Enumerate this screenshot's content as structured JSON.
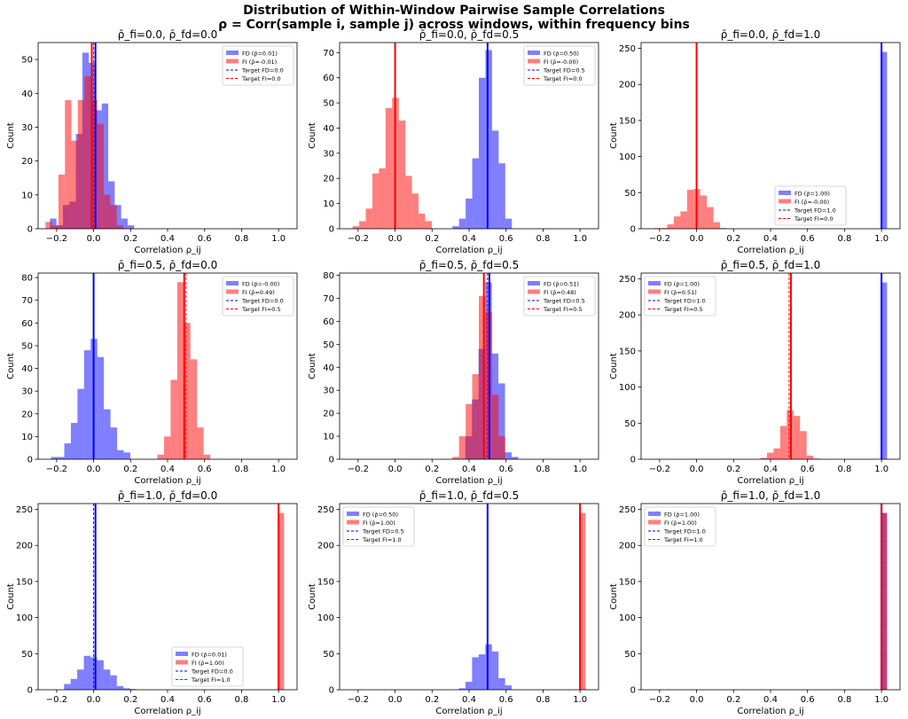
{
  "figure": {
    "title_line1": "Distribution of Within-Window Pairwise Sample Correlations",
    "title_line2": "ρ = Corr(sample i, sample j) across windows, within frequency bins"
  },
  "colors": {
    "fd": "#0000ff",
    "fi": "#ff0000",
    "fd_fill": "#8080ff",
    "fi_fill": "#ff8080",
    "overlap": "#c0407a"
  },
  "chart_data": [
    {
      "type": "bar",
      "title": "ρ̄_fi=0.0, ρ̄_fd=0.0",
      "xlabel": "Correlation ρ_ij",
      "ylabel": "Count",
      "xlim": [
        -0.3,
        1.1
      ],
      "ylim": [
        0,
        55
      ],
      "xticks": [
        "−0.2",
        "0.0",
        "0.2",
        "0.4",
        "0.6",
        "0.8",
        "1.0"
      ],
      "xtick_values": [
        -0.2,
        0,
        0.2,
        0.4,
        0.6,
        0.8,
        1.0
      ],
      "yticks": [
        0,
        10,
        20,
        30,
        40,
        50
      ],
      "legend_position": "upper-right",
      "series": [
        {
          "name": "FD",
          "legend": "FD (ρ̄=0.01)",
          "mean": 0.01,
          "target": 0.0,
          "target_legend": "Target FD=0.0",
          "bin_start": -0.236,
          "bin_width": 0.035,
          "counts": [
            3,
            1,
            7,
            8,
            28,
            52,
            49,
            35,
            37,
            14,
            7,
            3,
            1
          ]
        },
        {
          "name": "FI",
          "legend": "FI (ρ̄=-0.01)",
          "mean": -0.01,
          "target": 0.0,
          "target_legend": "Target FI=0.0",
          "bin_start": -0.26,
          "bin_width": 0.035,
          "counts": [
            2,
            1,
            16,
            38,
            26,
            38,
            45,
            38,
            31,
            10,
            7,
            1
          ]
        }
      ]
    },
    {
      "type": "bar",
      "title": "ρ̄_fi=0.0, ρ̄_fd=0.5",
      "xlabel": "Correlation ρ_ij",
      "ylabel": "Count",
      "xlim": [
        -0.3,
        1.1
      ],
      "ylim": [
        0,
        74
      ],
      "xticks": [
        "−0.2",
        "0.0",
        "0.2",
        "0.4",
        "0.6",
        "0.8",
        "1.0"
      ],
      "xtick_values": [
        -0.2,
        0,
        0.2,
        0.4,
        0.6,
        0.8,
        1.0
      ],
      "yticks": [
        0,
        10,
        20,
        30,
        40,
        50,
        60,
        70
      ],
      "legend_position": "upper-right",
      "series": [
        {
          "name": "FD",
          "legend": "FD (ρ̄=0.50)",
          "mean": 0.5,
          "target": 0.5,
          "target_legend": "Target FD=0.5",
          "bin_start": 0.31,
          "bin_width": 0.0357,
          "counts": [
            1,
            4,
            12,
            28,
            60,
            71,
            39,
            26,
            4
          ]
        },
        {
          "name": "FI",
          "legend": "FI (ρ̄=-0.00)",
          "mean": 0.0,
          "target": 0.0,
          "target_legend": "Target FI=0.0",
          "bin_start": -0.23,
          "bin_width": 0.0357,
          "counts": [
            1,
            3,
            8,
            22,
            24,
            48,
            52,
            43,
            21,
            14,
            6,
            3
          ]
        }
      ]
    },
    {
      "type": "bar",
      "title": "ρ̄_fi=0.0, ρ̄_fd=1.0",
      "xlabel": "Correlation ρ_ij",
      "ylabel": "Count",
      "xlim": [
        -0.3,
        1.1
      ],
      "ylim": [
        0,
        258
      ],
      "xticks": [
        "−0.2",
        "0.0",
        "0.2",
        "0.4",
        "0.6",
        "0.8",
        "1.0"
      ],
      "xtick_values": [
        -0.2,
        0,
        0.2,
        0.4,
        0.6,
        0.8,
        1.0
      ],
      "yticks": [
        0,
        50,
        100,
        150,
        200,
        250
      ],
      "legend_position": "lower-center",
      "series": [
        {
          "name": "FD",
          "legend": "FD (ρ̄=1.00)",
          "mean": 1.0,
          "target": 1.0,
          "target_legend": "Target FD=1.0",
          "bin_start": 0.995,
          "bin_width": 0.035,
          "counts": [
            245
          ]
        },
        {
          "name": "FI",
          "legend": "FI (ρ̄=-0.00)",
          "mean": 0.0,
          "target": 0.0,
          "target_legend": "Target FI=0.0",
          "bin_start": -0.23,
          "bin_width": 0.0357,
          "counts": [
            1,
            1,
            6,
            17,
            24,
            54,
            55,
            46,
            30,
            9,
            1
          ]
        }
      ]
    },
    {
      "type": "bar",
      "title": "ρ̄_fi=0.5, ρ̄_fd=0.0",
      "xlabel": "Correlation ρ_ij",
      "ylabel": "Count",
      "xlim": [
        -0.3,
        1.1
      ],
      "ylim": [
        0,
        82
      ],
      "xticks": [
        "−0.2",
        "0.0",
        "0.2",
        "0.4",
        "0.6",
        "0.8",
        "1.0"
      ],
      "xtick_values": [
        -0.2,
        0,
        0.2,
        0.4,
        0.6,
        0.8,
        1.0
      ],
      "yticks": [
        0,
        10,
        20,
        30,
        40,
        50,
        60,
        70,
        80
      ],
      "legend_position": "upper-right",
      "series": [
        {
          "name": "FD",
          "legend": "FD (ρ̄=-0.00)",
          "mean": 0.0,
          "target": 0.0,
          "target_legend": "Target FD=0.0",
          "bin_start": -0.23,
          "bin_width": 0.0357,
          "counts": [
            1,
            1,
            7,
            16,
            31,
            48,
            53,
            45,
            22,
            14,
            4,
            3
          ]
        },
        {
          "name": "FI",
          "legend": "FI (ρ̄=0.49)",
          "mean": 0.49,
          "target": 0.5,
          "target_legend": "Target FI=0.5",
          "bin_start": 0.345,
          "bin_width": 0.0357,
          "counts": [
            2,
            10,
            35,
            78,
            60,
            44,
            14,
            2
          ]
        }
      ]
    },
    {
      "type": "bar",
      "title": "ρ̄_fi=0.5, ρ̄_fd=0.5",
      "xlabel": "Correlation ρ_ij",
      "ylabel": "Count",
      "xlim": [
        -0.3,
        1.1
      ],
      "ylim": [
        0,
        81
      ],
      "xticks": [
        "−0.2",
        "0.0",
        "0.2",
        "0.4",
        "0.6",
        "0.8",
        "1.0"
      ],
      "xtick_values": [
        -0.2,
        0,
        0.2,
        0.4,
        0.6,
        0.8,
        1.0
      ],
      "yticks": [
        0,
        10,
        20,
        30,
        40,
        50,
        60,
        70,
        80
      ],
      "legend_position": "upper-right",
      "series": [
        {
          "name": "FD",
          "legend": "FD (ρ̄=0.51)",
          "mean": 0.51,
          "target": 0.5,
          "target_legend": "Target FD=0.5",
          "bin_start": 0.38,
          "bin_width": 0.0357,
          "counts": [
            10,
            26,
            48,
            77,
            46,
            33,
            3,
            1
          ]
        },
        {
          "name": "FI",
          "legend": "FI (ρ̄=0.48)",
          "mean": 0.48,
          "target": 0.5,
          "target_legend": "Target FI=0.5",
          "bin_start": 0.31,
          "bin_width": 0.0357,
          "counts": [
            1,
            10,
            24,
            37,
            71,
            64,
            28,
            10
          ]
        }
      ]
    },
    {
      "type": "bar",
      "title": "ρ̄_fi=0.5, ρ̄_fd=1.0",
      "xlabel": "Correlation ρ_ij",
      "ylabel": "Count",
      "xlim": [
        -0.3,
        1.1
      ],
      "ylim": [
        0,
        258
      ],
      "xticks": [
        "−0.2",
        "0.0",
        "0.2",
        "0.4",
        "0.6",
        "0.8",
        "1.0"
      ],
      "xtick_values": [
        -0.2,
        0,
        0.2,
        0.4,
        0.6,
        0.8,
        1.0
      ],
      "yticks": [
        0,
        50,
        100,
        150,
        200,
        250
      ],
      "legend_position": "upper-left",
      "series": [
        {
          "name": "FD",
          "legend": "FD (ρ̄=1.00)",
          "mean": 1.0,
          "target": 1.0,
          "target_legend": "Target FD=1.0",
          "bin_start": 0.995,
          "bin_width": 0.035,
          "counts": [
            245
          ]
        },
        {
          "name": "FI",
          "legend": "FI (ρ̄=0.51)",
          "mean": 0.51,
          "target": 0.5,
          "target_legend": "Target FI=0.5",
          "bin_start": 0.345,
          "bin_width": 0.0357,
          "counts": [
            2,
            9,
            15,
            46,
            68,
            60,
            39,
            5,
            1
          ]
        }
      ]
    },
    {
      "type": "bar",
      "title": "ρ̄_fi=1.0, ρ̄_fd=0.0",
      "xlabel": "Correlation ρ_ij",
      "ylabel": "Count",
      "xlim": [
        -0.3,
        1.1
      ],
      "ylim": [
        0,
        258
      ],
      "xticks": [
        "−0.2",
        "0.0",
        "0.2",
        "0.4",
        "0.6",
        "0.8",
        "1.0"
      ],
      "xtick_values": [
        -0.2,
        0,
        0.2,
        0.4,
        0.6,
        0.8,
        1.0
      ],
      "yticks": [
        0,
        50,
        100,
        150,
        200,
        250
      ],
      "legend_position": "lower-center",
      "series": [
        {
          "name": "FD",
          "legend": "FD (ρ̄=0.01)",
          "mean": 0.01,
          "target": 0.0,
          "target_legend": "Target FD=0.0",
          "bin_start": -0.16,
          "bin_width": 0.0357,
          "counts": [
            8,
            15,
            28,
            47,
            45,
            41,
            28,
            20,
            5,
            2,
            1
          ]
        },
        {
          "name": "FI",
          "legend": "FI (ρ̄=1.00)",
          "mean": 1.0,
          "target": 1.0,
          "target_legend": "Target FI=1.0",
          "bin_start": 0.995,
          "bin_width": 0.035,
          "counts": [
            245
          ]
        }
      ]
    },
    {
      "type": "bar",
      "title": "ρ̄_fi=1.0, ρ̄_fd=0.5",
      "xlabel": "Correlation ρ_ij",
      "ylabel": "Count",
      "xlim": [
        -0.3,
        1.1
      ],
      "ylim": [
        0,
        258
      ],
      "xticks": [
        "−0.2",
        "0.0",
        "0.2",
        "0.4",
        "0.6",
        "0.8",
        "1.0"
      ],
      "xtick_values": [
        -0.2,
        0,
        0.2,
        0.4,
        0.6,
        0.8,
        1.0
      ],
      "yticks": [
        0,
        50,
        100,
        150,
        200,
        250
      ],
      "legend_position": "upper-left",
      "series": [
        {
          "name": "FD",
          "legend": "FD (ρ̄=0.50)",
          "mean": 0.5,
          "target": 0.5,
          "target_legend": "Target FD=0.5",
          "bin_start": 0.345,
          "bin_width": 0.0357,
          "counts": [
            2,
            11,
            45,
            49,
            63,
            53,
            16,
            6
          ]
        },
        {
          "name": "FI",
          "legend": "FI (ρ̄=1.00)",
          "mean": 1.0,
          "target": 1.0,
          "target_legend": "Target FI=1.0",
          "bin_start": 0.995,
          "bin_width": 0.035,
          "counts": [
            245
          ]
        }
      ]
    },
    {
      "type": "bar",
      "title": "ρ̄_fi=1.0, ρ̄_fd=1.0",
      "xlabel": "Correlation ρ_ij",
      "ylabel": "Count",
      "xlim": [
        -0.3,
        1.1
      ],
      "ylim": [
        0,
        258
      ],
      "xticks": [
        "−0.2",
        "0.0",
        "0.2",
        "0.4",
        "0.6",
        "0.8",
        "1.0"
      ],
      "xtick_values": [
        -0.2,
        0,
        0.2,
        0.4,
        0.6,
        0.8,
        1.0
      ],
      "yticks": [
        0,
        50,
        100,
        150,
        200,
        250
      ],
      "legend_position": "upper-left",
      "series": [
        {
          "name": "FD",
          "legend": "FD (ρ̄=1.00)",
          "mean": 1.0,
          "target": 1.0,
          "target_legend": "Target FD=1.0",
          "bin_start": 0.995,
          "bin_width": 0.035,
          "counts": [
            245
          ]
        },
        {
          "name": "FI",
          "legend": "FI (ρ̄=1.00)",
          "mean": 1.0,
          "target": 1.0,
          "target_legend": "Target FI=1.0",
          "bin_start": 0.995,
          "bin_width": 0.035,
          "counts": [
            245
          ]
        }
      ]
    }
  ]
}
